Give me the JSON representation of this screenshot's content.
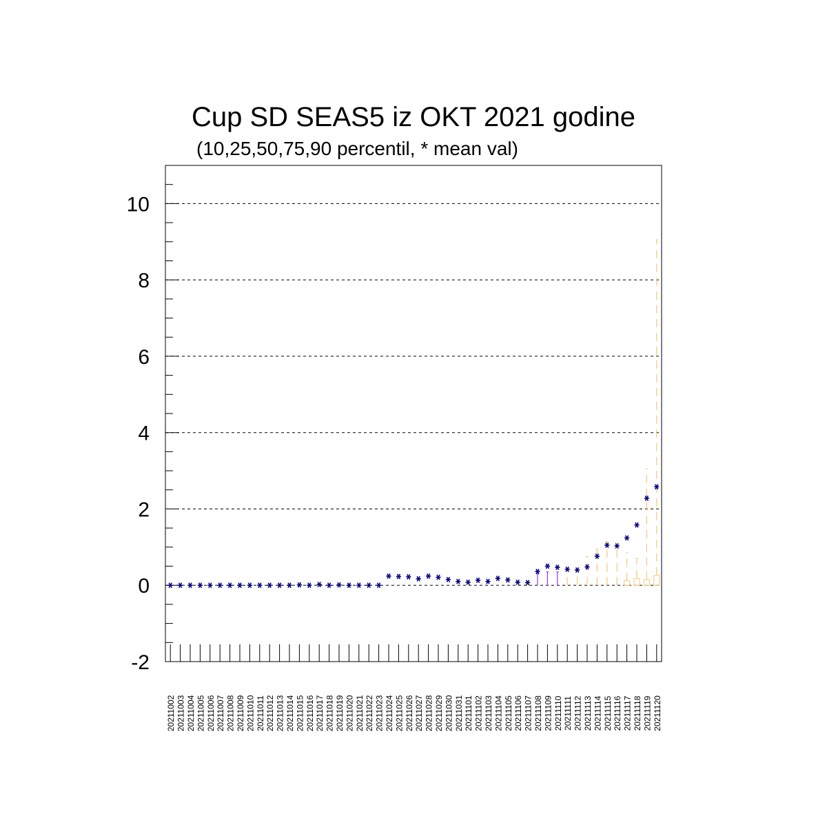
{
  "chart_data": {
    "type": "box",
    "title": "Cup SD SEAS5 iz OKT 2021 godine",
    "subtitle": "(10,25,50,75,90 percentil, * mean val)",
    "ylim": [
      -2,
      11
    ],
    "yticks": [
      -2,
      0,
      2,
      4,
      6,
      8,
      10
    ],
    "grid": true,
    "categories": [
      "20211002",
      "20211003",
      "20211004",
      "20211005",
      "20211006",
      "20211007",
      "20211008",
      "20211009",
      "20211010",
      "20211011",
      "20211012",
      "20211013",
      "20211014",
      "20211015",
      "20211016",
      "20211017",
      "20211018",
      "20211019",
      "20211020",
      "20211021",
      "20211022",
      "20211023",
      "20211024",
      "20211025",
      "20211026",
      "20211027",
      "20211028",
      "20211029",
      "20211030",
      "20211031",
      "20211101",
      "20211102",
      "20211103",
      "20211104",
      "20211105",
      "20211106",
      "20211107",
      "20211108",
      "20211109",
      "20211110",
      "20211111",
      "20211112",
      "20211113",
      "20211114",
      "20211115",
      "20211116",
      "20211117",
      "20211118",
      "20211119",
      "20211120"
    ],
    "mean": [
      0,
      0,
      0,
      0,
      0,
      0,
      0,
      0,
      0,
      0,
      0,
      0,
      0,
      0.01,
      0,
      0.02,
      0,
      0.01,
      0,
      0,
      0,
      0,
      0.24,
      0.23,
      0.22,
      0.17,
      0.24,
      0.21,
      0.15,
      0.1,
      0.08,
      0.13,
      0.1,
      0.18,
      0.14,
      0.08,
      0.07,
      0.36,
      0.5,
      0.47,
      0.42,
      0.4,
      0.48,
      0.76,
      1.05,
      1.03,
      1.24,
      1.58,
      2.28,
      2.58
    ],
    "p90": [
      0,
      0,
      0,
      0,
      0,
      0,
      0,
      0,
      0,
      0,
      0,
      0,
      0,
      0,
      0,
      0,
      0,
      0,
      0,
      0,
      0,
      0,
      0,
      0,
      0,
      0,
      0,
      0,
      0,
      0,
      0,
      0,
      0,
      0,
      0,
      0,
      0,
      0.3,
      0.35,
      0.35,
      0.4,
      0.45,
      0.75,
      0.95,
      1.15,
      1.1,
      0.85,
      0.7,
      3.05,
      9.05
    ],
    "p75": [
      0,
      0,
      0,
      0,
      0,
      0,
      0,
      0,
      0,
      0,
      0,
      0,
      0,
      0,
      0,
      0,
      0,
      0,
      0,
      0,
      0,
      0,
      0,
      0,
      0,
      0,
      0,
      0,
      0,
      0,
      0,
      0,
      0,
      0,
      0,
      0,
      0,
      0,
      0,
      0,
      0,
      0,
      0,
      0,
      0,
      0,
      0.12,
      0.18,
      0.15,
      0.26
    ],
    "p50": [
      0,
      0,
      0,
      0,
      0,
      0,
      0,
      0,
      0,
      0,
      0,
      0,
      0,
      0,
      0,
      0,
      0,
      0,
      0,
      0,
      0,
      0,
      0,
      0,
      0,
      0,
      0,
      0,
      0,
      0,
      0,
      0,
      0,
      0,
      0,
      0,
      0,
      0,
      0,
      0,
      0,
      0,
      0,
      0,
      0,
      0,
      0,
      0,
      0,
      0
    ],
    "p25": [
      0,
      0,
      0,
      0,
      0,
      0,
      0,
      0,
      0,
      0,
      0,
      0,
      0,
      0,
      0,
      0,
      0,
      0,
      0,
      0,
      0,
      0,
      0,
      0,
      0,
      0,
      0,
      0,
      0,
      0,
      0,
      0,
      0,
      0,
      0,
      0,
      0,
      0,
      0,
      0,
      0,
      0,
      0,
      0,
      0,
      0,
      0,
      0,
      0,
      0
    ],
    "p10": [
      0,
      0,
      0,
      0,
      0,
      0,
      0,
      0,
      0,
      0,
      0,
      0,
      0,
      0,
      0,
      0,
      0,
      0,
      0,
      0,
      0,
      0,
      0,
      0,
      0,
      0,
      0,
      0,
      0,
      0,
      0,
      0,
      0,
      0,
      0,
      0,
      0,
      0,
      0,
      0,
      0,
      0,
      0,
      0,
      0,
      0,
      0,
      0,
      0,
      0
    ]
  },
  "colors": {
    "mean_marker": "#000080",
    "whisker_early": "#9b30ff",
    "whisker_late": "#f5c77a",
    "axis": "#000000"
  }
}
